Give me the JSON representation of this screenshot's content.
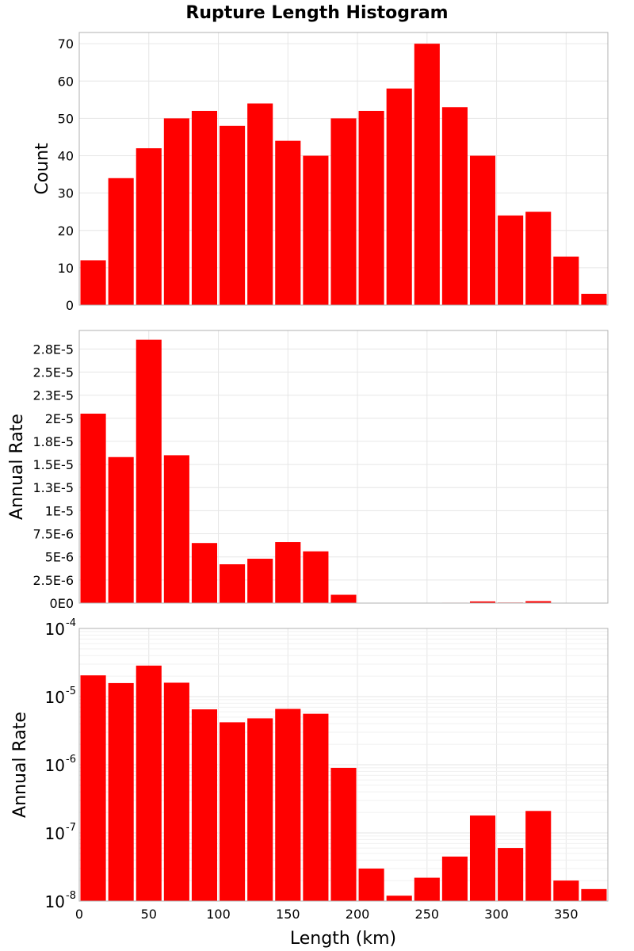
{
  "chart_data": {
    "type": "bar",
    "title": "Rupture Length Histogram",
    "xlabel": "Length (km)",
    "xlim": [
      0,
      380
    ],
    "bin_width": 20,
    "bin_starts": [
      0,
      20,
      40,
      60,
      80,
      100,
      120,
      140,
      160,
      180,
      200,
      220,
      240,
      260,
      280,
      300,
      320,
      340,
      360
    ],
    "x_ticks": [
      "0",
      "50",
      "100",
      "150",
      "200",
      "250",
      "300",
      "350"
    ],
    "x_tick_values": [
      0,
      50,
      100,
      150,
      200,
      250,
      300,
      350
    ],
    "color": "#ff0000",
    "panels": [
      {
        "ylabel": "Count",
        "scale": "linear",
        "ylim": [
          0,
          73
        ],
        "y_ticks": [
          "0",
          "10",
          "20",
          "30",
          "40",
          "50",
          "60",
          "70"
        ],
        "y_tick_values": [
          0,
          10,
          20,
          30,
          40,
          50,
          60,
          70
        ],
        "values": [
          12,
          34,
          42,
          50,
          52,
          48,
          54,
          44,
          40,
          50,
          52,
          58,
          70,
          53,
          40,
          24,
          25,
          13,
          3
        ]
      },
      {
        "ylabel": "Annual Rate",
        "scale": "linear",
        "ylim": [
          0,
          2.95e-05
        ],
        "y_ticks": [
          "0E0",
          "2.5E-6",
          "5E-6",
          "7.5E-6",
          "1E-5",
          "1.3E-5",
          "1.5E-5",
          "1.8E-5",
          "2E-5",
          "2.3E-5",
          "2.5E-5",
          "2.8E-5"
        ],
        "y_tick_values": [
          0,
          2.5e-06,
          5e-06,
          7.5e-06,
          1e-05,
          1.25e-05,
          1.5e-05,
          1.75e-05,
          2e-05,
          2.25e-05,
          2.5e-05,
          2.75e-05
        ],
        "values": [
          2.05e-05,
          1.58e-05,
          2.85e-05,
          1.6e-05,
          6.5e-06,
          4.2e-06,
          4.8e-06,
          6.6e-06,
          5.6e-06,
          9e-07,
          3e-08,
          1.2e-08,
          2.2e-08,
          4.5e-08,
          1.8e-07,
          6e-08,
          2.1e-07,
          2e-08,
          1.5e-08
        ]
      },
      {
        "ylabel": "Annual Rate",
        "scale": "log",
        "ylim": [
          1e-08,
          0.0001
        ],
        "y_ticks": [
          {
            "base": "10",
            "exp": "-8"
          },
          {
            "base": "10",
            "exp": "-7"
          },
          {
            "base": "10",
            "exp": "-6"
          },
          {
            "base": "10",
            "exp": "-5"
          },
          {
            "base": "10",
            "exp": "-4"
          }
        ],
        "y_tick_exponents": [
          -8,
          -7,
          -6,
          -5,
          -4
        ],
        "values": [
          2.05e-05,
          1.58e-05,
          2.85e-05,
          1.6e-05,
          6.5e-06,
          4.2e-06,
          4.8e-06,
          6.6e-06,
          5.6e-06,
          9e-07,
          3e-08,
          1.2e-08,
          2.2e-08,
          4.5e-08,
          1.8e-07,
          6e-08,
          2.1e-07,
          2e-08,
          1.5e-08
        ]
      }
    ]
  }
}
